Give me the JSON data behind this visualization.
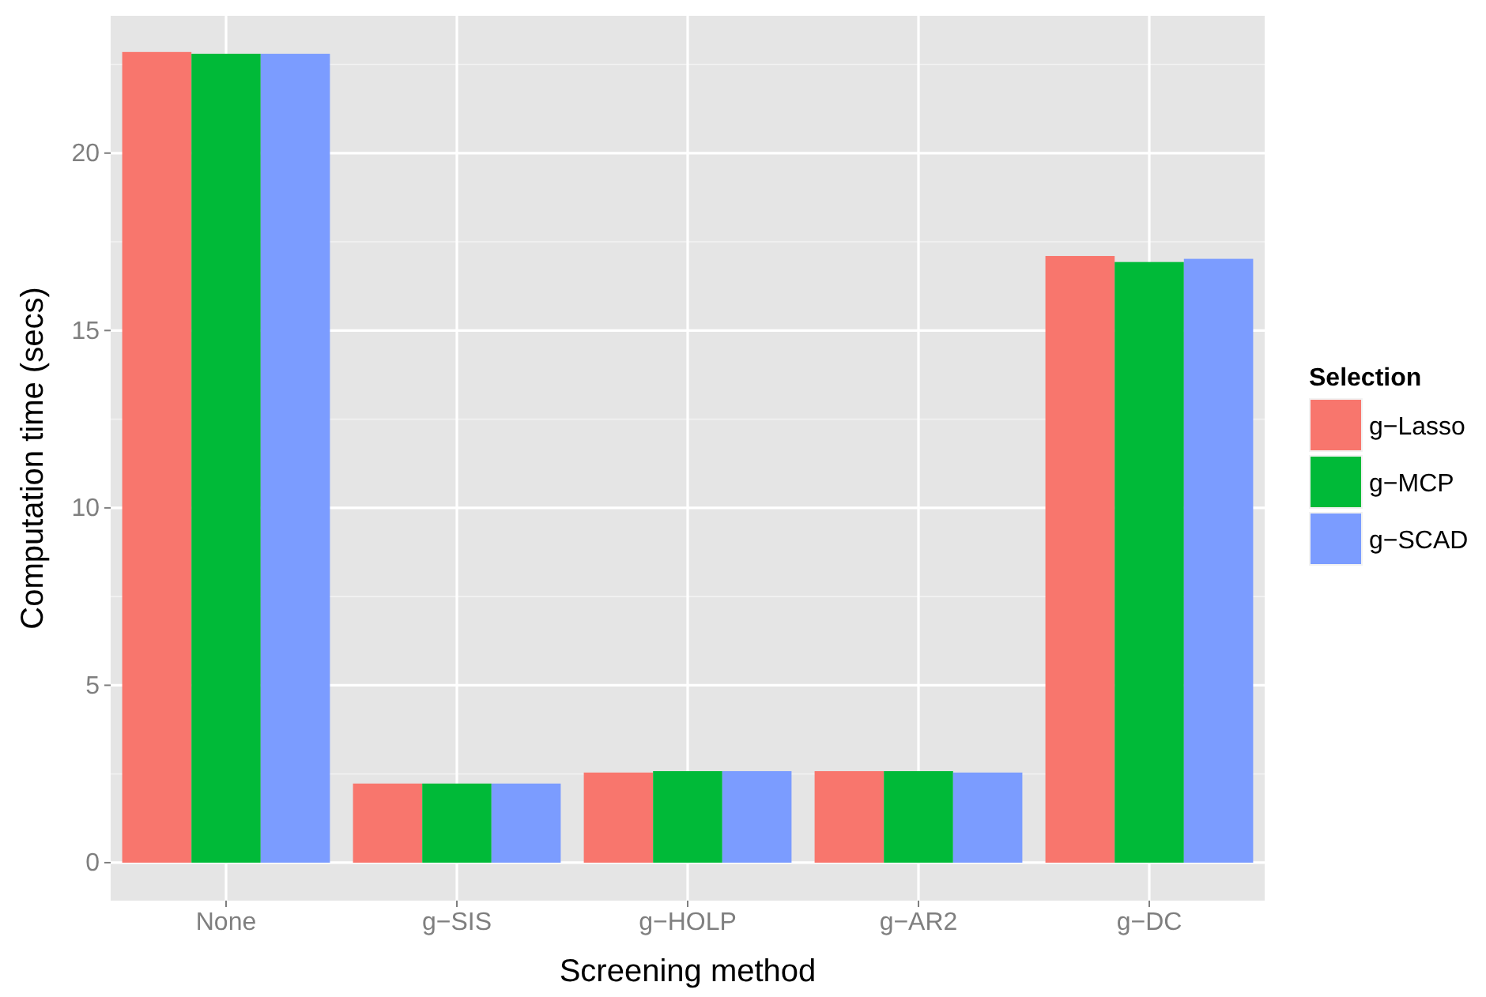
{
  "chart_data": {
    "type": "bar",
    "xlabel": "Screening method",
    "ylabel": "Computation time (secs)",
    "legend_title": "Selection",
    "categories": [
      "None",
      "g−SIS",
      "g−HOLP",
      "g−AR2",
      "g−DC"
    ],
    "series": [
      {
        "name": "g−Lasso",
        "color": "#f8766d",
        "values": [
          22.85,
          2.23,
          2.54,
          2.58,
          17.1
        ]
      },
      {
        "name": "g−MCP",
        "color": "#00ba38",
        "values": [
          22.8,
          2.23,
          2.58,
          2.58,
          16.93
        ]
      },
      {
        "name": "g−SCAD",
        "color": "#7b9cff",
        "values": [
          22.8,
          2.23,
          2.58,
          2.54,
          17.02
        ]
      }
    ],
    "ylim": [
      -1.07,
      23.87
    ],
    "yticks": [
      0,
      5,
      10,
      15,
      20
    ],
    "grid": true,
    "legend": "right"
  }
}
